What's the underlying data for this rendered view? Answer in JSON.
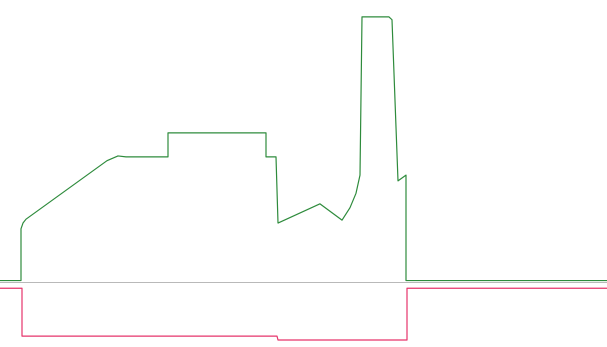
{
  "chart_data": {
    "type": "line",
    "grid": false,
    "legend": "none",
    "baseline": {
      "value": 0,
      "color": "#b9b9b9"
    },
    "series": [
      {
        "color": "#2e8b3c",
        "points": [
          [
            0,
            0.02
          ],
          [
            21,
            0.02
          ],
          [
            21,
            0.56
          ],
          [
            23,
            0.62
          ],
          [
            26,
            0.66
          ],
          [
            107,
            1.27
          ],
          [
            118,
            1.32
          ],
          [
            126,
            1.31
          ],
          [
            168,
            1.31
          ],
          [
            168,
            1.56
          ],
          [
            266,
            1.56
          ],
          [
            266,
            1.31
          ],
          [
            276,
            1.31
          ],
          [
            278,
            0.62
          ],
          [
            320,
            0.82
          ],
          [
            342,
            0.65
          ],
          [
            350,
            0.78
          ],
          [
            356,
            0.93
          ],
          [
            360,
            1.12
          ],
          [
            362,
            2.77
          ],
          [
            389,
            2.77
          ],
          [
            392,
            2.74
          ],
          [
            398,
            1.06
          ],
          [
            406,
            1.12
          ],
          [
            406,
            0.02
          ],
          [
            607,
            0.02
          ]
        ]
      },
      {
        "color": "#e6346b",
        "points": [
          [
            0,
            -0.06
          ],
          [
            22,
            -0.06
          ],
          [
            22,
            -0.56
          ],
          [
            277,
            -0.56
          ],
          [
            278,
            -0.6
          ],
          [
            407,
            -0.6
          ],
          [
            407,
            -0.06
          ],
          [
            607,
            -0.06
          ]
        ]
      }
    ],
    "xlim": [
      0,
      607
    ],
    "ylim": [
      -0.6,
      2.8
    ]
  }
}
